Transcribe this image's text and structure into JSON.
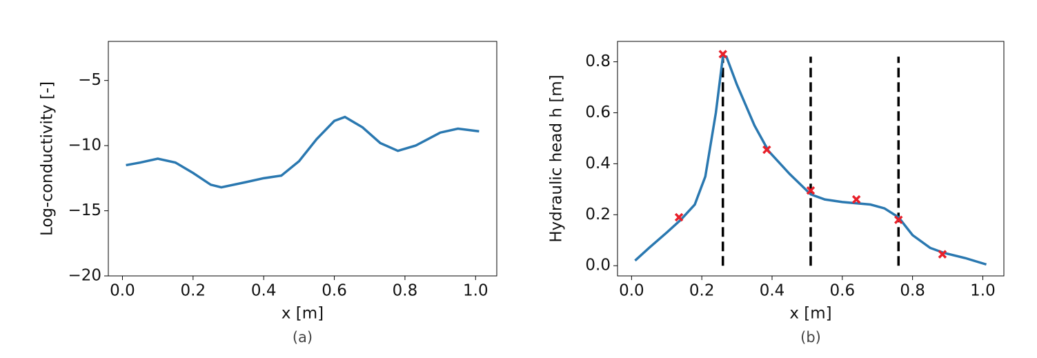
{
  "chart_data": [
    {
      "type": "line",
      "xlabel": "x [m]",
      "ylabel": "Log-conductivity [-]",
      "caption": "(a)",
      "x": [
        0.01,
        0.05,
        0.1,
        0.15,
        0.2,
        0.25,
        0.28,
        0.35,
        0.4,
        0.45,
        0.5,
        0.55,
        0.6,
        0.63,
        0.68,
        0.73,
        0.78,
        0.83,
        0.9,
        0.95,
        1.01
      ],
      "values": [
        -11.5,
        -11.3,
        -11.0,
        -11.3,
        -12.1,
        -13.0,
        -13.2,
        -12.8,
        -12.5,
        -12.3,
        -11.2,
        -9.5,
        -8.1,
        -7.8,
        -8.6,
        -9.8,
        -10.4,
        -10.0,
        -9.0,
        -8.7,
        -8.9
      ],
      "color": "#2a78b0",
      "xlim": [
        -0.04,
        1.06
      ],
      "xticks": [
        {
          "value": 0,
          "label": "0.0"
        },
        0.2,
        0.4,
        0.6,
        0.8,
        {
          "value": 1,
          "label": "1.0"
        }
      ],
      "ylim": [
        -20,
        -2
      ],
      "yticks": [
        {
          "value": -20,
          "label": "−20"
        },
        {
          "value": -15,
          "label": "−15"
        },
        {
          "value": -10,
          "label": "−10"
        },
        {
          "value": -5,
          "label": "−5"
        }
      ]
    },
    {
      "type": "line",
      "xlabel": "x [m]",
      "ylabel": "Hydraulic head h [m]",
      "caption": "(b)",
      "x": [
        0.01,
        0.05,
        0.1,
        0.14,
        0.18,
        0.21,
        0.24,
        0.26,
        0.27,
        0.3,
        0.35,
        0.39,
        0.45,
        0.51,
        0.55,
        0.6,
        0.68,
        0.72,
        0.76,
        0.8,
        0.85,
        0.89,
        0.95,
        1.01
      ],
      "values": [
        0.02,
        0.07,
        0.13,
        0.18,
        0.24,
        0.35,
        0.6,
        0.82,
        0.82,
        0.71,
        0.55,
        0.45,
        0.36,
        0.28,
        0.26,
        0.25,
        0.24,
        0.225,
        0.19,
        0.12,
        0.07,
        0.05,
        0.03,
        0.005
      ],
      "color": "#2a78b0",
      "markers": {
        "x": [
          0.135,
          0.26,
          0.385,
          0.51,
          0.64,
          0.76,
          0.885
        ],
        "values": [
          0.19,
          0.83,
          0.455,
          0.295,
          0.26,
          0.18,
          0.045
        ],
        "color": "#e8202a"
      },
      "vlines": {
        "x": [
          0.26,
          0.51,
          0.76
        ],
        "ymin": 0,
        "ymax": 0.82,
        "color": "#000000"
      },
      "xlim": [
        -0.04,
        1.06
      ],
      "xticks": [
        {
          "value": 0,
          "label": "0.0"
        },
        0.2,
        0.4,
        0.6,
        0.8,
        {
          "value": 1,
          "label": "1.0"
        }
      ],
      "ylim": [
        -0.04,
        0.88
      ],
      "yticks": [
        {
          "value": 0,
          "label": "0.0"
        },
        0.2,
        0.4,
        0.6,
        0.8
      ]
    }
  ]
}
